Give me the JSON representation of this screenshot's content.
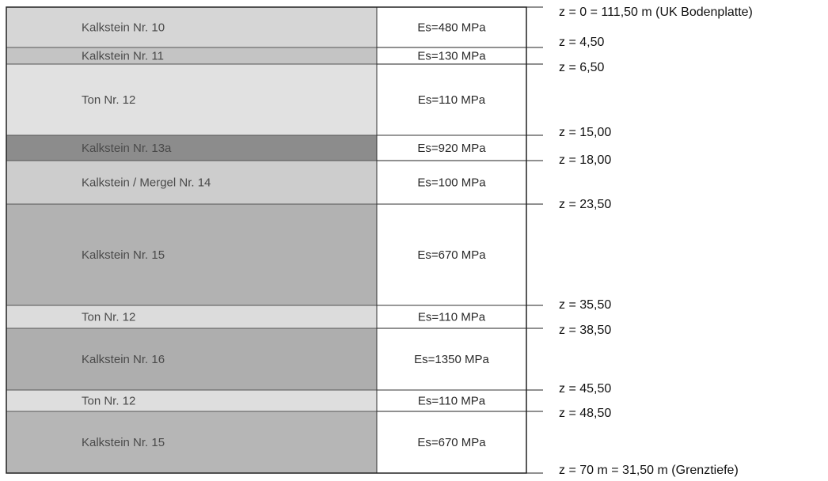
{
  "layers": [
    {
      "name": "Kalkstein Nr. 10",
      "es": "Es=480 MPa",
      "shade": "#d6d6d6"
    },
    {
      "name": "Kalkstein Nr. 11",
      "es": "Es=130 MPa",
      "shade": "#c4c4c4"
    },
    {
      "name": "Ton Nr. 12",
      "es": "Es=110 MPa",
      "shade": "#e1e1e1"
    },
    {
      "name": "Kalkstein Nr. 13a",
      "es": "Es=920 MPa",
      "shade": "#8c8c8c"
    },
    {
      "name": "Kalkstein / Mergel Nr. 14",
      "es": "Es=100 MPa",
      "shade": "#cdcdcd"
    },
    {
      "name": "Kalkstein Nr. 15",
      "es": "Es=670 MPa",
      "shade": "#b2b2b2"
    },
    {
      "name": "Ton Nr. 12",
      "es": "Es=110 MPa",
      "shade": "#dcdcdc"
    },
    {
      "name": "Kalkstein Nr. 16",
      "es": "Es=1350 MPa",
      "shade": "#aeaeae"
    },
    {
      "name": "Ton Nr. 12",
      "es": "Es=110 MPa",
      "shade": "#dedede"
    },
    {
      "name": "Kalkstein Nr. 15",
      "es": "Es=670 MPa",
      "shade": "#b6b6b6"
    }
  ],
  "depths": [
    "z = 0 = 111,50 m (UK Bodenplatte)",
    "z = 4,50",
    "z = 6,50",
    "z = 15,00",
    "z = 18,00",
    "z = 23,50",
    "z = 35,50",
    "z = 38,50",
    "z = 45,50",
    "z = 48,50",
    "z = 70 m = 31,50 m (Grenztiefe)"
  ]
}
